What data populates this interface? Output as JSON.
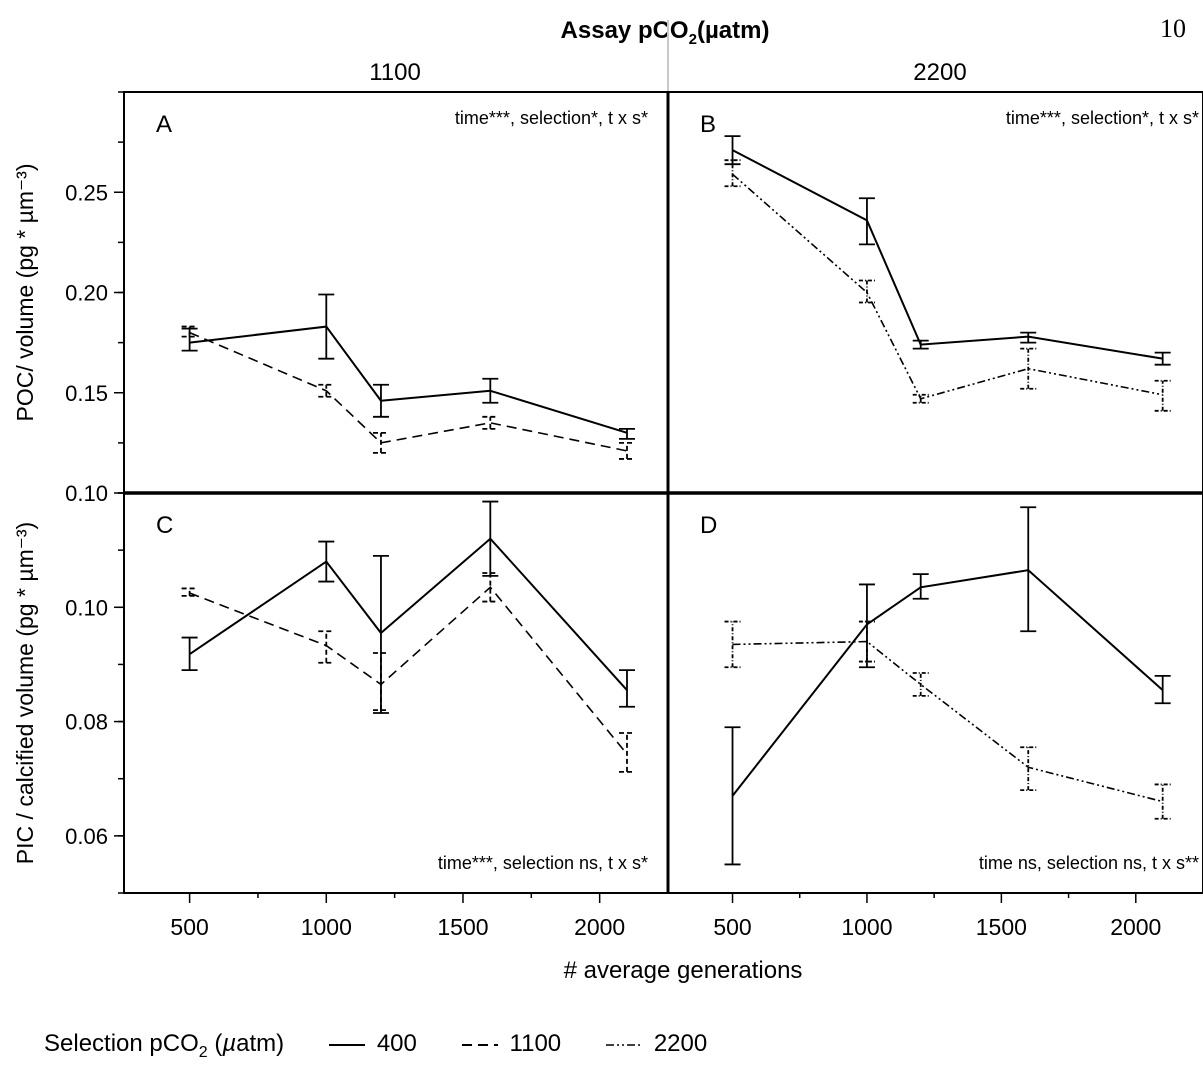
{
  "page_number": "10",
  "chart_data": {
    "type": "line",
    "title": "Assay pCO2(µatm)",
    "xlabel": "# average generations",
    "legend": {
      "title": "Selection pCO2 (µatm)",
      "placement": "bottom",
      "entries": [
        {
          "label": "400",
          "style": "solid"
        },
        {
          "label": "1100",
          "style": "dashed"
        },
        {
          "label": "2200",
          "style": "dash-dot-dot"
        }
      ]
    },
    "column_headers": [
      "1100",
      "2200"
    ],
    "x_ticks": [
      500,
      1000,
      1500,
      2000
    ],
    "xlim": [
      260,
      2250
    ],
    "rows": [
      {
        "ylabel": "POC/ volume (pg * µm⁻³)",
        "ylim": [
          0.1,
          0.3
        ],
        "y_ticks": [
          0.1,
          0.15,
          0.2,
          0.25
        ],
        "y_tick_labels": [
          "0.10",
          "0.15",
          "0.20",
          "0.25"
        ]
      },
      {
        "ylabel": "PIC / calcified volume (pg * µm⁻³)",
        "ylim": [
          0.05,
          0.12
        ],
        "y_ticks": [
          0.06,
          0.08,
          0.1
        ],
        "y_tick_labels": [
          "0.06",
          "0.08",
          "0.10"
        ]
      }
    ],
    "panels": [
      {
        "label": "A",
        "row": 0,
        "col": 0,
        "stats": "time***, selection*, t x s*",
        "stats_pos": "top",
        "series": [
          {
            "name": "400",
            "style": "solid",
            "points": [
              [
                500,
                0.175,
                0.171,
                0.182
              ],
              [
                1000,
                0.183,
                0.167,
                0.199
              ],
              [
                1200,
                0.146,
                0.138,
                0.154
              ],
              [
                1600,
                0.151,
                0.145,
                0.157
              ],
              [
                2100,
                0.13,
                0.127,
                0.132
              ]
            ]
          },
          {
            "name": "1100",
            "style": "dashed",
            "points": [
              [
                500,
                0.18,
                0.178,
                0.183
              ],
              [
                1000,
                0.151,
                0.148,
                0.154
              ],
              [
                1200,
                0.125,
                0.12,
                0.13
              ],
              [
                1600,
                0.135,
                0.132,
                0.138
              ],
              [
                2100,
                0.121,
                0.117,
                0.125
              ]
            ]
          }
        ]
      },
      {
        "label": "B",
        "row": 0,
        "col": 1,
        "stats": "time***, selection*, t x s*",
        "stats_pos": "top",
        "series": [
          {
            "name": "400",
            "style": "solid",
            "points": [
              [
                500,
                0.271,
                0.264,
                0.278
              ],
              [
                1000,
                0.236,
                0.224,
                0.247
              ],
              [
                1200,
                0.174,
                0.172,
                0.176
              ],
              [
                1600,
                0.178,
                0.175,
                0.18
              ],
              [
                2100,
                0.167,
                0.164,
                0.17
              ]
            ]
          },
          {
            "name": "2200",
            "style": "dash-dot-dot",
            "points": [
              [
                500,
                0.259,
                0.253,
                0.266
              ],
              [
                1000,
                0.2,
                0.195,
                0.206
              ],
              [
                1200,
                0.147,
                0.145,
                0.149
              ],
              [
                1600,
                0.162,
                0.152,
                0.172
              ],
              [
                2100,
                0.149,
                0.141,
                0.156
              ]
            ]
          }
        ]
      },
      {
        "label": "C",
        "row": 1,
        "col": 0,
        "stats": "time***, selection ns, t x s*",
        "stats_pos": "bottom",
        "series": [
          {
            "name": "400",
            "style": "solid",
            "points": [
              [
                500,
                0.0918,
                0.089,
                0.0947
              ],
              [
                1000,
                0.108,
                0.1045,
                0.1115
              ],
              [
                1200,
                0.0955,
                0.0815,
                0.109
              ],
              [
                1600,
                0.112,
                0.1055,
                0.1185
              ],
              [
                2100,
                0.0855,
                0.0826,
                0.089
              ]
            ]
          },
          {
            "name": "1100",
            "style": "dashed",
            "points": [
              [
                500,
                0.1025,
                0.102,
                0.1033
              ],
              [
                1000,
                0.0933,
                0.0903,
                0.0958
              ],
              [
                1200,
                0.0865,
                0.082,
                0.092
              ],
              [
                1600,
                0.1035,
                0.101,
                0.106
              ],
              [
                2100,
                0.0743,
                0.0712,
                0.078
              ]
            ]
          }
        ]
      },
      {
        "label": "D",
        "row": 1,
        "col": 1,
        "stats": "time ns, selection ns, t x s**",
        "stats_pos": "bottom",
        "series": [
          {
            "name": "400",
            "style": "solid",
            "points": [
              [
                500,
                0.067,
                0.055,
                0.079
              ],
              [
                1000,
                0.097,
                0.0895,
                0.104
              ],
              [
                1200,
                0.1035,
                0.1015,
                0.1058
              ],
              [
                1600,
                0.1065,
                0.0958,
                0.1175
              ],
              [
                2100,
                0.0855,
                0.0832,
                0.088
              ]
            ]
          },
          {
            "name": "2200",
            "style": "dash-dot-dot",
            "points": [
              [
                500,
                0.0935,
                0.0895,
                0.0975
              ],
              [
                1000,
                0.094,
                0.0905,
                0.0975
              ],
              [
                1200,
                0.0865,
                0.0845,
                0.0885
              ],
              [
                1600,
                0.072,
                0.068,
                0.0755
              ],
              [
                2100,
                0.066,
                0.063,
                0.069
              ]
            ]
          }
        ]
      }
    ]
  }
}
